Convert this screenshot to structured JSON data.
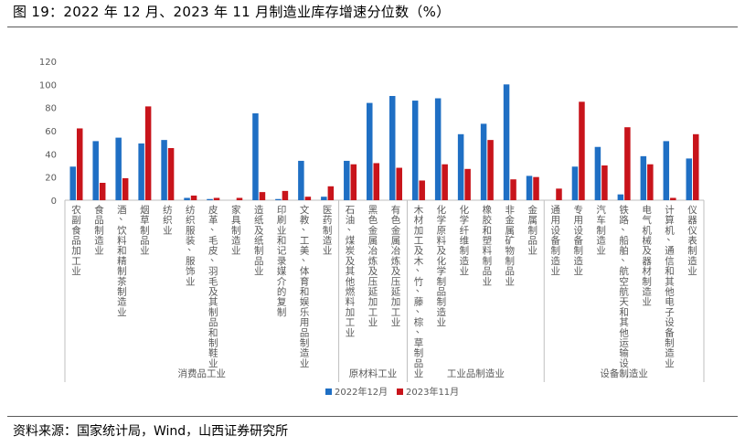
{
  "figure_title": "图 19：2022 年 12 月、2023 年 11 月制造业库存增速分位数（%）",
  "source": "资料来源：国家统计局，Wind，山西证券研究所",
  "colors": {
    "series_2022_12": "#1f6fc4",
    "series_2023_11": "#c8141b",
    "axis": "#bfbfbf",
    "text": "#595959"
  },
  "chart_data": {
    "type": "bar",
    "title": "",
    "xlabel": "",
    "ylabel": "",
    "ylim": [
      0,
      120
    ],
    "yticks": [
      0,
      20,
      40,
      60,
      80,
      100,
      120
    ],
    "grid": false,
    "legend_position": "bottom",
    "categories": [
      "农副食品加工业",
      "食品制造业",
      "酒、饮料和精制茶制造业",
      "烟草制品业",
      "纺织业",
      "纺织服装、服饰业",
      "皮革、毛皮、羽毛及其制品和制鞋业",
      "家具制造业",
      "造纸及纸制品业",
      "印刷业和记录媒介的复制",
      "文教、工美、体育和娱乐用品制造业",
      "医药制造业",
      "石油、煤炭及其他燃料加工业",
      "黑色金属冶炼及压延加工业",
      "有色金属冶炼及压延加工业",
      "木材加工及木、竹、藤、棕、草制品业",
      "化学原料及化学制品制造业",
      "化学纤维制造业",
      "橡胶和塑料制品业",
      "非金属矿物制品业",
      "金属制品业",
      "通用设备制造业",
      "专用设备制造业",
      "汽车制造业",
      "铁路、船舶、航空航天和其他运输设…",
      "电气机械及器材制造业",
      "计算机、通信和其他电子设备制造业",
      "仪器仪表制造业"
    ],
    "groups": [
      {
        "name": "消费品工业",
        "count": 12
      },
      {
        "name": "原材料工业",
        "count": 3
      },
      {
        "name": "工业品制造业",
        "count": 6
      },
      {
        "name": "设备制造业",
        "count": 7
      }
    ],
    "series": [
      {
        "name": "2022年12月",
        "values": [
          29,
          51,
          54,
          49,
          52,
          2,
          1,
          0,
          75,
          1,
          34,
          3,
          34,
          84,
          90,
          86,
          88,
          57,
          66,
          100,
          21,
          0,
          29,
          46,
          5,
          38,
          51,
          36
        ]
      },
      {
        "name": "2023年11月",
        "values": [
          62,
          15,
          19,
          81,
          45,
          4,
          2,
          2,
          7,
          8,
          3,
          12,
          31,
          32,
          28,
          17,
          31,
          27,
          52,
          18,
          20,
          10,
          85,
          30,
          63,
          31,
          2,
          57
        ]
      }
    ]
  }
}
